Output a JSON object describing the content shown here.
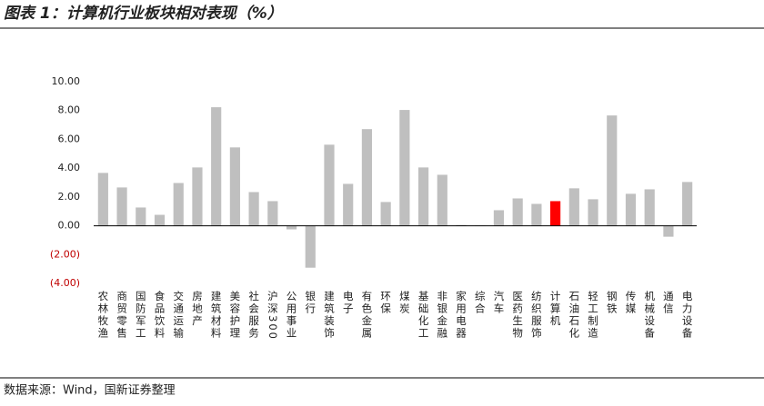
{
  "chart_data": {
    "type": "bar",
    "title": "图表 1：计算机行业板块相对表现（%）",
    "source": "数据来源：Wind，国新证券整理",
    "categories": [
      "农林牧渔",
      "商贸零售",
      "国防军工",
      "食品饮料",
      "交通运输",
      "房地产",
      "建筑材料",
      "美容护理",
      "社会服务",
      "沪深300",
      "公用事业",
      "银行",
      "建筑装饰",
      "电子",
      "有色金属",
      "环保",
      "煤炭",
      "基础化工",
      "非银金融",
      "家用电器",
      "综合",
      "汽车",
      "医药生物",
      "纺织服饰",
      "计算机",
      "石油石化",
      "轻工制造",
      "钢铁",
      "传媒",
      "机械设备",
      "通信",
      "电力设备"
    ],
    "values": [
      3.67,
      2.66,
      1.27,
      0.76,
      2.97,
      4.05,
      8.23,
      5.44,
      2.34,
      1.71,
      -0.25,
      -2.91,
      5.63,
      2.91,
      6.71,
      1.65,
      8.04,
      4.05,
      3.54,
      0.06,
      0.02,
      1.08,
      1.9,
      1.52,
      1.71,
      2.6,
      1.84,
      7.66,
      2.22,
      2.53,
      -0.76,
      3.04
    ],
    "colors": [
      "#bfbfbf",
      "#bfbfbf",
      "#bfbfbf",
      "#bfbfbf",
      "#bfbfbf",
      "#bfbfbf",
      "#bfbfbf",
      "#bfbfbf",
      "#bfbfbf",
      "#bfbfbf",
      "#bfbfbf",
      "#bfbfbf",
      "#bfbfbf",
      "#bfbfbf",
      "#bfbfbf",
      "#bfbfbf",
      "#bfbfbf",
      "#bfbfbf",
      "#bfbfbf",
      "#bfbfbf",
      "#bfbfbf",
      "#bfbfbf",
      "#bfbfbf",
      "#bfbfbf",
      "#ff0000",
      "#bfbfbf",
      "#bfbfbf",
      "#bfbfbf",
      "#bfbfbf",
      "#bfbfbf",
      "#bfbfbf",
      "#bfbfbf"
    ],
    "ylim": [
      -4,
      10
    ],
    "yticks": [
      {
        "value": -4,
        "label": "(4.00)"
      },
      {
        "value": -2,
        "label": "(2.00)"
      },
      {
        "value": 0,
        "label": "0.00"
      },
      {
        "value": 2,
        "label": "2.00"
      },
      {
        "value": 4,
        "label": "4.00"
      },
      {
        "value": 6,
        "label": "6.00"
      },
      {
        "value": 8,
        "label": "8.00"
      },
      {
        "value": 10,
        "label": "10.00"
      }
    ],
    "negative_tick_color": "#c00000",
    "grid": false
  }
}
